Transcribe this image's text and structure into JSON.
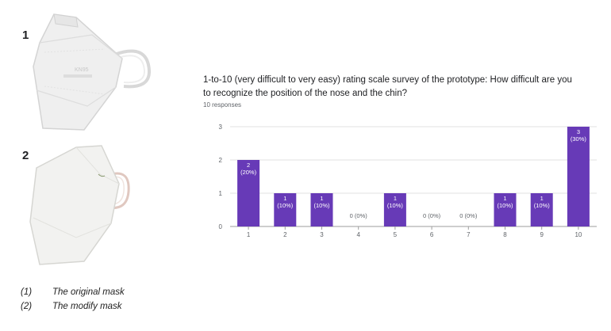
{
  "figure": {
    "label_1": "1",
    "label_2": "2",
    "caption_1_num": "(1)",
    "caption_1_text": "The original mask",
    "caption_2_num": "(2)",
    "caption_2_text": "The modify mask",
    "mask_1_print": "KN95"
  },
  "survey": {
    "question": "1-to-10 (very difficult to very easy) rating scale survey of the prototype:  How difficult are you to recognize the position of the nose and the chin?",
    "responses": "10 responses"
  },
  "colors": {
    "bar": "#673ab7",
    "grid": "#e0e0e0",
    "axis": "#5f6368"
  },
  "chart_data": {
    "type": "bar",
    "categories": [
      "1",
      "2",
      "3",
      "4",
      "5",
      "6",
      "7",
      "8",
      "9",
      "10"
    ],
    "values": [
      2,
      1,
      1,
      0,
      1,
      0,
      0,
      1,
      1,
      3
    ],
    "data_labels": [
      [
        "2",
        "(20%)"
      ],
      [
        "1",
        "(10%)"
      ],
      [
        "1",
        "(10%)"
      ],
      [
        "0 (0%)"
      ],
      [
        "1",
        "(10%)"
      ],
      [
        "0 (0%)"
      ],
      [
        "0 (0%)"
      ],
      [
        "1",
        "(10%)"
      ],
      [
        "1",
        "(10%)"
      ],
      [
        "3",
        "(30%)"
      ]
    ],
    "yticks": [
      0,
      1,
      2,
      3
    ],
    "ylim": [
      0,
      3
    ],
    "grid": true
  }
}
